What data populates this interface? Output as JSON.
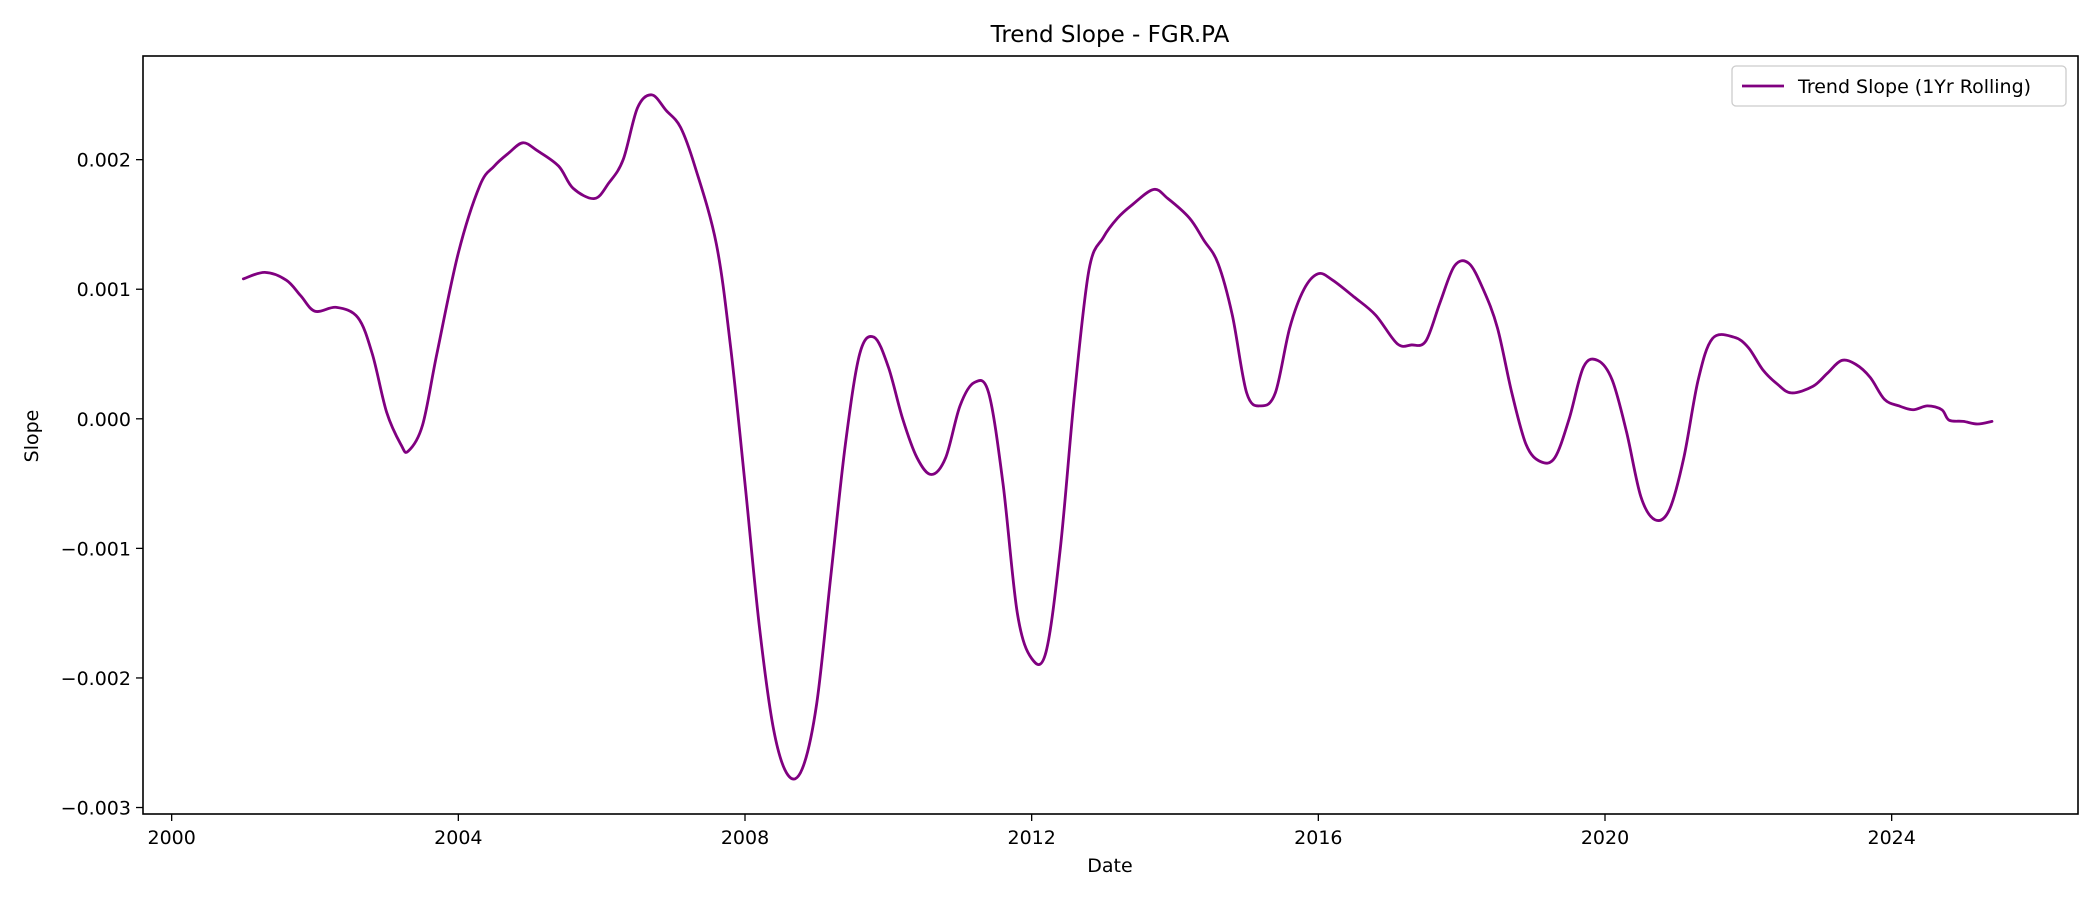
{
  "chart_data": {
    "type": "line",
    "title": "Trend Slope - FGR.PA",
    "xlabel": "Date",
    "ylabel": "Slope",
    "xlim": [
      1999.6,
      2026.6
    ],
    "ylim": [
      -0.00305,
      0.0028
    ],
    "x_ticks": [
      2000,
      2004,
      2008,
      2012,
      2016,
      2020,
      2024
    ],
    "x_tick_labels": [
      "2000",
      "2004",
      "2008",
      "2012",
      "2016",
      "2020",
      "2024"
    ],
    "y_ticks": [
      -0.003,
      -0.002,
      -0.001,
      0.0,
      0.001,
      0.002
    ],
    "y_tick_labels": [
      "−0.003",
      "−0.002",
      "−0.001",
      "0.000",
      "0.001",
      "0.002"
    ],
    "grid": false,
    "legend_position": "top-right",
    "color": "#800080",
    "series": [
      {
        "name": "Trend Slope (1Yr Rolling)",
        "color": "#800080",
        "points": [
          [
            2001.0,
            0.00108
          ],
          [
            2001.3,
            0.00113
          ],
          [
            2001.6,
            0.00107
          ],
          [
            2001.8,
            0.00095
          ],
          [
            2002.0,
            0.00083
          ],
          [
            2002.3,
            0.00086
          ],
          [
            2002.6,
            0.00078
          ],
          [
            2002.8,
            0.0005
          ],
          [
            2003.0,
            5e-05
          ],
          [
            2003.2,
            -0.0002
          ],
          [
            2003.3,
            -0.00025
          ],
          [
            2003.5,
            -5e-05
          ],
          [
            2003.7,
            0.0005
          ],
          [
            2004.0,
            0.00128
          ],
          [
            2004.3,
            0.0018
          ],
          [
            2004.5,
            0.00195
          ],
          [
            2004.7,
            0.00205
          ],
          [
            2004.9,
            0.00213
          ],
          [
            2005.1,
            0.00207
          ],
          [
            2005.4,
            0.00195
          ],
          [
            2005.6,
            0.00178
          ],
          [
            2005.9,
            0.0017
          ],
          [
            2006.1,
            0.00182
          ],
          [
            2006.3,
            0.002
          ],
          [
            2006.5,
            0.0024
          ],
          [
            2006.7,
            0.0025
          ],
          [
            2006.9,
            0.00238
          ],
          [
            2007.1,
            0.00225
          ],
          [
            2007.3,
            0.00195
          ],
          [
            2007.6,
            0.00135
          ],
          [
            2007.8,
            0.00055
          ],
          [
            2008.0,
            -0.0005
          ],
          [
            2008.2,
            -0.0016
          ],
          [
            2008.4,
            -0.0024
          ],
          [
            2008.6,
            -0.00275
          ],
          [
            2008.8,
            -0.0027
          ],
          [
            2009.0,
            -0.0022
          ],
          [
            2009.2,
            -0.0012
          ],
          [
            2009.4,
            -0.0002
          ],
          [
            2009.6,
            0.0005
          ],
          [
            2009.8,
            0.00063
          ],
          [
            2010.0,
            0.0004
          ],
          [
            2010.2,
            0.0
          ],
          [
            2010.4,
            -0.0003
          ],
          [
            2010.6,
            -0.00043
          ],
          [
            2010.8,
            -0.0003
          ],
          [
            2011.0,
            0.0001
          ],
          [
            2011.2,
            0.00028
          ],
          [
            2011.4,
            0.0002
          ],
          [
            2011.6,
            -0.0005
          ],
          [
            2011.8,
            -0.0015
          ],
          [
            2012.0,
            -0.00185
          ],
          [
            2012.2,
            -0.0018
          ],
          [
            2012.4,
            -0.001
          ],
          [
            2012.6,
            0.0002
          ],
          [
            2012.8,
            0.00115
          ],
          [
            2013.0,
            0.0014
          ],
          [
            2013.2,
            0.00155
          ],
          [
            2013.4,
            0.00165
          ],
          [
            2013.7,
            0.00177
          ],
          [
            2013.9,
            0.0017
          ],
          [
            2014.2,
            0.00155
          ],
          [
            2014.4,
            0.00138
          ],
          [
            2014.6,
            0.0012
          ],
          [
            2014.8,
            0.0008
          ],
          [
            2015.0,
            0.0002
          ],
          [
            2015.2,
            0.0001
          ],
          [
            2015.4,
            0.0002
          ],
          [
            2015.6,
            0.0007
          ],
          [
            2015.8,
            0.001
          ],
          [
            2016.0,
            0.00112
          ],
          [
            2016.2,
            0.00107
          ],
          [
            2016.5,
            0.00094
          ],
          [
            2016.8,
            0.0008
          ],
          [
            2017.1,
            0.00058
          ],
          [
            2017.3,
            0.00057
          ],
          [
            2017.5,
            0.0006
          ],
          [
            2017.7,
            0.0009
          ],
          [
            2017.9,
            0.00118
          ],
          [
            2018.1,
            0.0012
          ],
          [
            2018.3,
            0.001
          ],
          [
            2018.5,
            0.0007
          ],
          [
            2018.7,
            0.0002
          ],
          [
            2018.9,
            -0.0002
          ],
          [
            2019.1,
            -0.00033
          ],
          [
            2019.3,
            -0.0003
          ],
          [
            2019.5,
            0.0
          ],
          [
            2019.7,
            0.0004
          ],
          [
            2019.9,
            0.00045
          ],
          [
            2020.1,
            0.0003
          ],
          [
            2020.3,
            -0.0001
          ],
          [
            2020.5,
            -0.0006
          ],
          [
            2020.7,
            -0.00078
          ],
          [
            2020.9,
            -0.0007
          ],
          [
            2021.1,
            -0.0003
          ],
          [
            2021.3,
            0.0003
          ],
          [
            2021.5,
            0.00062
          ],
          [
            2021.8,
            0.00063
          ],
          [
            2022.0,
            0.00055
          ],
          [
            2022.2,
            0.00038
          ],
          [
            2022.4,
            0.00027
          ],
          [
            2022.6,
            0.0002
          ],
          [
            2022.9,
            0.00025
          ],
          [
            2023.1,
            0.00035
          ],
          [
            2023.3,
            0.00045
          ],
          [
            2023.5,
            0.00042
          ],
          [
            2023.7,
            0.00032
          ],
          [
            2023.9,
            0.00015
          ],
          [
            2024.1,
            0.0001
          ],
          [
            2024.3,
            7e-05
          ],
          [
            2024.5,
            0.0001
          ],
          [
            2024.7,
            7e-05
          ],
          [
            2024.8,
            -1e-05
          ],
          [
            2025.0,
            -2e-05
          ],
          [
            2025.2,
            -4e-05
          ],
          [
            2025.4,
            -2e-05
          ]
        ]
      }
    ]
  }
}
